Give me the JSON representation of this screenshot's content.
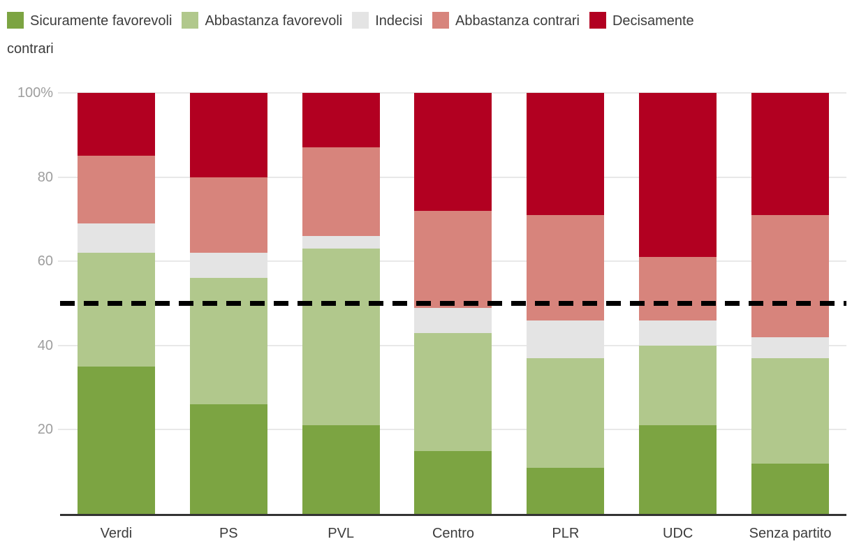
{
  "chart_data": {
    "type": "bar",
    "stacked": true,
    "orientation": "vertical",
    "title": "",
    "xlabel": "",
    "ylabel": "",
    "categories": [
      "Verdi",
      "PS",
      "PVL",
      "Centro",
      "PLR",
      "UDC",
      "Senza partito"
    ],
    "series": [
      {
        "name": "Sicuramente favorevoli",
        "color": "#7ca442",
        "values": [
          35,
          26,
          21,
          15,
          11,
          21,
          12
        ]
      },
      {
        "name": "Abbastanza favorevoli",
        "color": "#b1c88c",
        "values": [
          27,
          30,
          42,
          28,
          26,
          19,
          25
        ]
      },
      {
        "name": "Indecisi",
        "color": "#e4e4e4",
        "values": [
          7,
          6,
          3,
          6,
          9,
          6,
          5
        ]
      },
      {
        "name": "Abbastanza contrari",
        "color": "#d7847c",
        "values": [
          16,
          18,
          21,
          23,
          25,
          15,
          29
        ]
      },
      {
        "name": "Decisamente contrari",
        "color": "#b20021",
        "values": [
          15,
          20,
          13,
          28,
          29,
          39,
          29
        ]
      }
    ],
    "cumulative_tops_for_reference": {
      "Verdi": [
        35,
        62,
        69,
        85,
        100
      ],
      "PS": [
        26,
        56,
        62,
        80,
        100
      ],
      "PVL": [
        21,
        63,
        66,
        87,
        100
      ],
      "Centro": [
        15,
        43,
        49,
        72,
        100
      ],
      "PLR": [
        11,
        37,
        46,
        71,
        100
      ],
      "UDC": [
        21,
        40,
        46,
        61,
        100
      ],
      "Senza partito": [
        12,
        37,
        42,
        71,
        100
      ]
    },
    "y_ticks": [
      {
        "label": "100%",
        "value": 100
      },
      {
        "label": "80",
        "value": 80
      },
      {
        "label": "60",
        "value": 60
      },
      {
        "label": "40",
        "value": 40
      },
      {
        "label": "20",
        "value": 20
      }
    ],
    "ylim": [
      0,
      100
    ],
    "grid": "horizontal",
    "legend_position": "top-left",
    "reference_line": {
      "value": 50,
      "style": "dashed",
      "color": "#000000"
    }
  },
  "colors": {
    "background": "#ffffff",
    "axis_label": "#9e9e9e",
    "gridline": "#e8e8e8",
    "baseline": "#333333",
    "category_label": "#3c3c3c",
    "legend_text": "#3c3c3c",
    "reference_line": "#000000"
  }
}
